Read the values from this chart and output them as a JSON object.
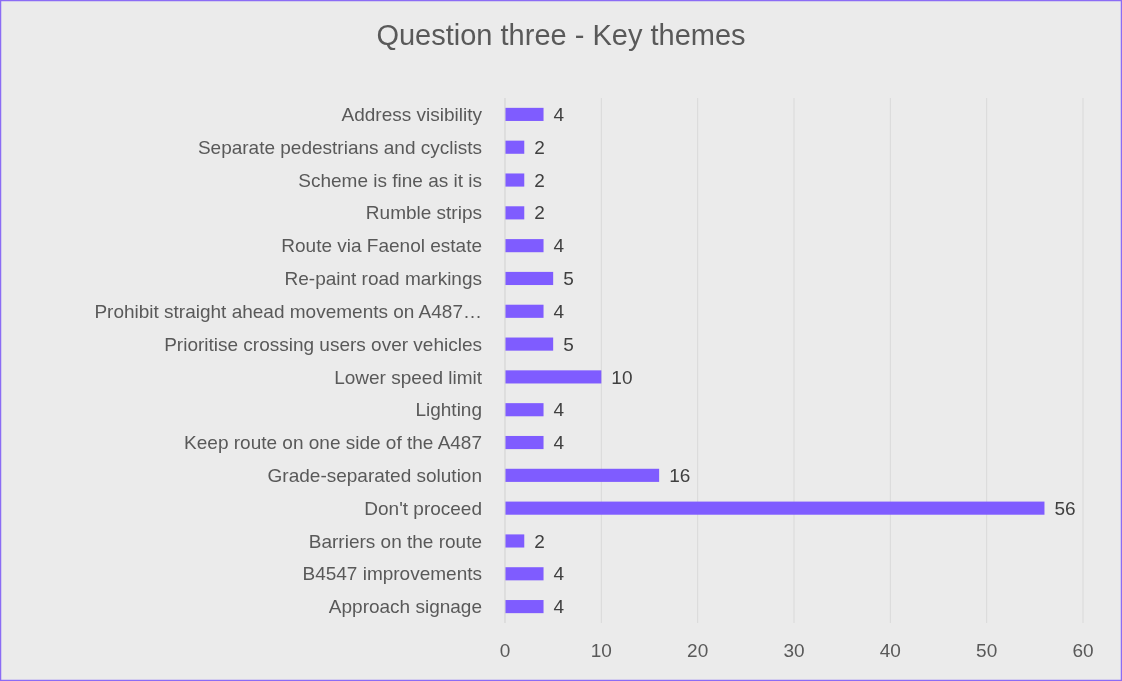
{
  "chart_data": {
    "type": "bar",
    "orientation": "horizontal",
    "title": "Question three - Key themes",
    "categories": [
      "Address visibility",
      "Separate pedestrians and cyclists",
      "Scheme is fine as it is",
      "Rumble strips",
      "Route via Faenol estate",
      "Re-paint road markings",
      "Prohibit straight ahead movements on A487…",
      "Prioritise crossing users over vehicles",
      "Lower speed limit",
      "Lighting",
      "Keep route on one side of the A487",
      "Grade-separated solution",
      "Don't proceed",
      "Barriers on the route",
      "B4547 improvements",
      "Approach signage"
    ],
    "values": [
      4,
      2,
      2,
      2,
      4,
      5,
      4,
      5,
      10,
      4,
      4,
      16,
      56,
      2,
      4,
      4
    ],
    "color": "#7f5cff",
    "xlim": [
      0,
      60
    ],
    "xticks": [
      0,
      10,
      20,
      30,
      40,
      50,
      60
    ],
    "grid": "x",
    "data_labels": true
  }
}
